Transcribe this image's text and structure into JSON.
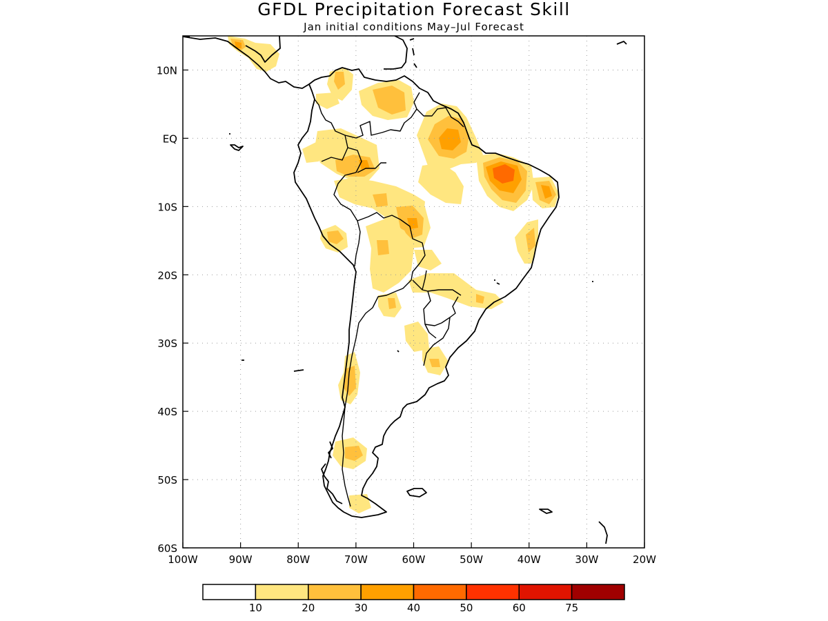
{
  "title": "GFDL Precipitation Forecast Skill",
  "subtitle": "Jan initial conditions   May–Jul Forecast",
  "chart_data": {
    "type": "map",
    "region": "South America",
    "projection": "equirectangular",
    "lon_range": [
      -100,
      -20
    ],
    "lat_range": [
      -60,
      15
    ],
    "x_tick_labels": [
      "100W",
      "90W",
      "80W",
      "70W",
      "60W",
      "50W",
      "40W",
      "30W",
      "20W"
    ],
    "x_tick_values": [
      -100,
      -90,
      -80,
      -70,
      -60,
      -50,
      -40,
      -30,
      -20
    ],
    "y_tick_labels": [
      "10N",
      "EQ",
      "10S",
      "20S",
      "30S",
      "40S",
      "50S",
      "60S"
    ],
    "y_tick_values": [
      10,
      0,
      -10,
      -20,
      -30,
      -40,
      -50,
      -60
    ],
    "grid": true,
    "colorbar": {
      "orientation": "horizontal",
      "boundaries": [
        "10",
        "20",
        "30",
        "40",
        "50",
        "60",
        "75"
      ],
      "colors": [
        "#ffffff",
        "#ffe680",
        "#ffc03c",
        "#ffa000",
        "#ff6a00",
        "#ff3200",
        "#e01400",
        "#a00000"
      ]
    },
    "shaded_regions": [
      {
        "name": "central-america",
        "level": "10-20",
        "lon": -84,
        "lat": 12
      },
      {
        "name": "northeast-brazil",
        "level": "40-50",
        "lon": -44,
        "lat": -5
      },
      {
        "name": "amazon-delta",
        "level": "30-40",
        "lon": -52,
        "lat": 1
      },
      {
        "name": "rio-grande-do-norte",
        "level": "30-40",
        "lon": -37,
        "lat": -6
      },
      {
        "name": "colombia-amazon",
        "level": "20-30",
        "lon": -70,
        "lat": -3
      },
      {
        "name": "venezuela",
        "level": "20-30",
        "lon": -65,
        "lat": 7
      },
      {
        "name": "bolivia",
        "level": "10-20",
        "lon": -65,
        "lat": -15
      },
      {
        "name": "peru",
        "level": "20-30",
        "lon": -74,
        "lat": -14
      },
      {
        "name": "central-chile",
        "level": "20-30",
        "lon": -71,
        "lat": -36
      },
      {
        "name": "patagonia",
        "level": "20-30",
        "lon": -72,
        "lat": -46
      },
      {
        "name": "south-brazil",
        "level": "10-20",
        "lon": -52,
        "lat": -22
      },
      {
        "name": "uruguay",
        "level": "10-20",
        "lon": -54,
        "lat": -32
      }
    ]
  }
}
